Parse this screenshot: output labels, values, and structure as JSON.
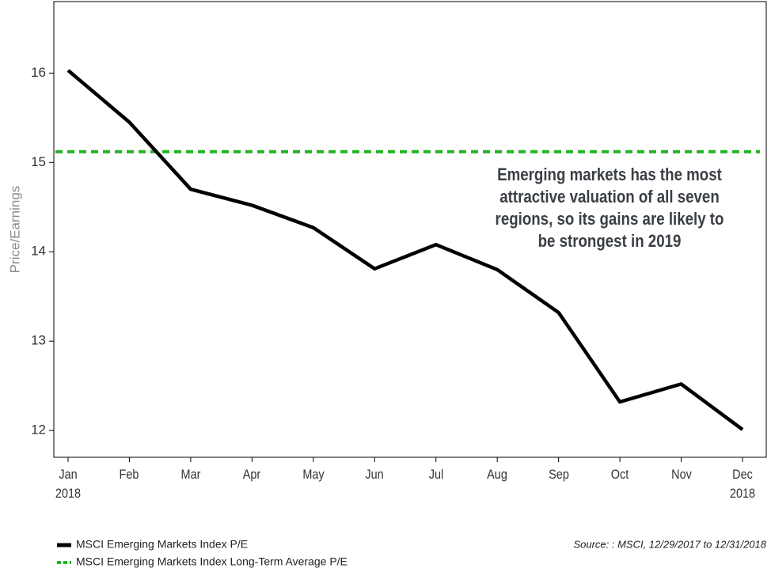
{
  "chart_data": {
    "type": "line",
    "categories": [
      "Jan\n2018",
      "Feb",
      "Mar",
      "Apr",
      "May",
      "Jun",
      "Jul",
      "Aug",
      "Sep",
      "Oct",
      "Nov",
      "Dec\n2018"
    ],
    "series": [
      {
        "name": "MSCI Emerging Markets Index P/E",
        "color": "#000000",
        "values": [
          16.03,
          15.45,
          14.7,
          14.52,
          14.27,
          13.81,
          14.08,
          13.8,
          13.32,
          12.32,
          12.52,
          12.01
        ]
      }
    ],
    "reference_line": {
      "name": "MSCI Emerging Markets Index Long-Term Average P/E",
      "value": 15.12,
      "color": "#22b322"
    },
    "ylabel": "Price/Earnings",
    "ylim": [
      11.7,
      16.8
    ],
    "yticks": [
      12,
      13,
      14,
      15,
      16
    ],
    "annotation": "Emerging markets has the most\nattractive valuation of all seven\nregions, so its gains are likely to\nbe strongest in 2019",
    "source": "Source: : MSCI, 12/29/2017 to 12/31/2018"
  }
}
